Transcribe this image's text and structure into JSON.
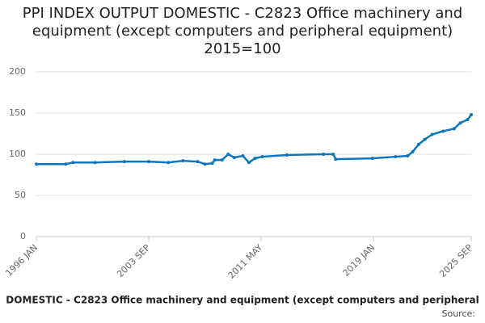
{
  "chart_data": {
    "type": "line",
    "title": "PPI INDEX OUTPUT DOMESTIC - C2823 Office machinery and equipment (except computers and peripheral equipment) 2015=100",
    "x": [
      "1996 JAN",
      "1998 JAN",
      "1998 JUL",
      "2000 JAN",
      "2002 JAN",
      "2003 SEP",
      "2005 JAN",
      "2006 JAN",
      "2007 JAN",
      "2007 JUL",
      "2008 JAN",
      "2008 MAR",
      "2008 SEP",
      "2009 FEB",
      "2009 JUL",
      "2010 FEB",
      "2010 JUL",
      "2010 DEC",
      "2011 JUN",
      "2013 FEB",
      "2015 AUG",
      "2016 APR",
      "2016 JUN",
      "2018 DEC",
      "2020 JUL",
      "2021 MAY",
      "2021 SEP",
      "2022 FEB",
      "2022 JUL",
      "2023 JAN",
      "2023 OCT",
      "2024 JUL",
      "2024 DEC",
      "2025 JUN",
      "2025 SEP"
    ],
    "series": [
      {
        "name": "DOMESTIC - C2823 Office machinery and equipment (except computers and peripheral",
        "color": "#0e76bd",
        "values": [
          88,
          88,
          90,
          90,
          91,
          91,
          90,
          92,
          91,
          88,
          89,
          93,
          93,
          100,
          96,
          98,
          90,
          95,
          97,
          99,
          100,
          100,
          94,
          95,
          97,
          98,
          103,
          112,
          118,
          124,
          128,
          131,
          138,
          142,
          148
        ]
      }
    ],
    "ylim": [
      0,
      200
    ],
    "yticks": [
      0,
      50,
      100,
      150,
      200
    ],
    "xlim": [
      "1996 JAN",
      "2025 SEP"
    ],
    "xticks": [
      "1996 JAN",
      "2003 SEP",
      "2011 MAY",
      "2019 JAN",
      "2025 SEP"
    ],
    "grid": true,
    "source": "Source:"
  }
}
